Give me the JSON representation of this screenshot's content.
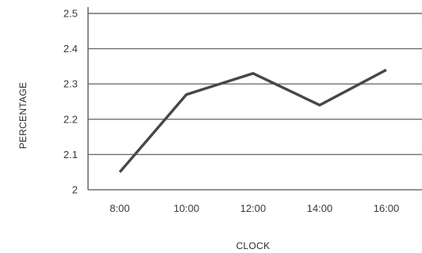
{
  "chart_data": {
    "type": "line",
    "x": [
      "8:00",
      "10:00",
      "12:00",
      "14:00",
      "16:00"
    ],
    "series": [
      {
        "values": [
          2.05,
          2.27,
          2.33,
          2.24,
          2.34
        ]
      }
    ],
    "xlabel": "CLOCK",
    "ylabel": "PERCENTAGE",
    "ylim": [
      2,
      2.5
    ],
    "yticks": [
      2,
      2.1,
      2.2,
      2.3,
      2.4,
      2.5
    ],
    "ytick_labels": [
      "2",
      "2.1",
      "2.2",
      "2.3",
      "2.4",
      "2.5"
    ],
    "grid": true,
    "colors": {
      "line": "#474747",
      "grid": "#6e6e6e"
    }
  }
}
